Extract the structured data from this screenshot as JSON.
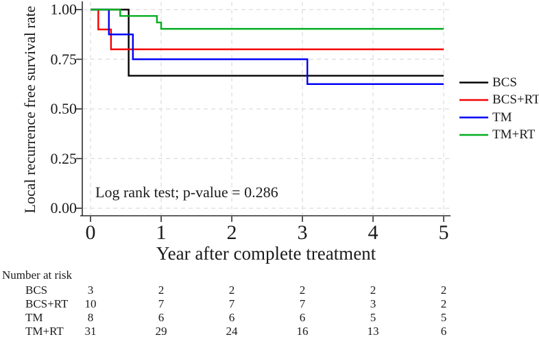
{
  "chart_data": {
    "type": "line",
    "variant": "kaplan_meier_step",
    "title": "",
    "xlabel": "Year after complete treatment",
    "ylabel": "Local recurrence free survival rate",
    "xlim": [
      0,
      5
    ],
    "ylim": [
      0,
      1
    ],
    "xticks": [
      "0",
      "1",
      "2",
      "3",
      "4",
      "5"
    ],
    "xtick_values": [
      0,
      1,
      2,
      3,
      4,
      5
    ],
    "yticks": [
      "0.00",
      "0.25",
      "0.50",
      "0.75",
      "1.00"
    ],
    "ytick_values": [
      0,
      0.25,
      0.5,
      0.75,
      1
    ],
    "grid": "dashed horizontal and vertical gridlines",
    "legend_position": "right-outside",
    "annotation": "Log rank test; p-value = 0.286",
    "series": [
      {
        "name": "BCS",
        "color": "#000000",
        "steps": [
          [
            0,
            1.0
          ],
          [
            0.54,
            1.0
          ],
          [
            0.54,
            0.667
          ],
          [
            5,
            0.667
          ]
        ]
      },
      {
        "name": "BCS+RT",
        "color": "#f40000",
        "steps": [
          [
            0,
            1.0
          ],
          [
            0.11,
            1.0
          ],
          [
            0.11,
            0.9
          ],
          [
            0.29,
            0.9
          ],
          [
            0.29,
            0.8
          ],
          [
            5,
            0.8
          ]
        ]
      },
      {
        "name": "TM",
        "color": "#0000f5",
        "steps": [
          [
            0,
            1.0
          ],
          [
            0.26,
            1.0
          ],
          [
            0.26,
            0.875
          ],
          [
            0.6,
            0.875
          ],
          [
            0.6,
            0.75
          ],
          [
            3.07,
            0.75
          ],
          [
            3.07,
            0.625
          ],
          [
            5,
            0.625
          ]
        ]
      },
      {
        "name": "TM+RT",
        "color": "#00ad1e",
        "steps": [
          [
            0,
            1.0
          ],
          [
            0.42,
            1.0
          ],
          [
            0.42,
            0.968
          ],
          [
            0.94,
            0.968
          ],
          [
            0.94,
            0.935
          ],
          [
            1.0,
            0.935
          ],
          [
            1.0,
            0.903
          ],
          [
            5,
            0.903
          ]
        ]
      }
    ]
  },
  "risk_table": {
    "title": "Number at risk",
    "time_points": [
      0,
      1,
      2,
      3,
      4,
      5
    ],
    "rows": [
      {
        "label": "BCS",
        "values": [
          "3",
          "2",
          "2",
          "2",
          "2",
          "2"
        ]
      },
      {
        "label": "BCS+RT",
        "values": [
          "10",
          "7",
          "7",
          "7",
          "3",
          "2"
        ]
      },
      {
        "label": "TM",
        "values": [
          "8",
          "6",
          "6",
          "6",
          "5",
          "5"
        ]
      },
      {
        "label": "TM+RT",
        "values": [
          "31",
          "29",
          "24",
          "16",
          "13",
          "6"
        ]
      }
    ]
  },
  "colors": {
    "axis": "#2b2b2b",
    "grid": "#dcdcdc",
    "text": "#1a1a1a",
    "background": "#ffffff"
  }
}
